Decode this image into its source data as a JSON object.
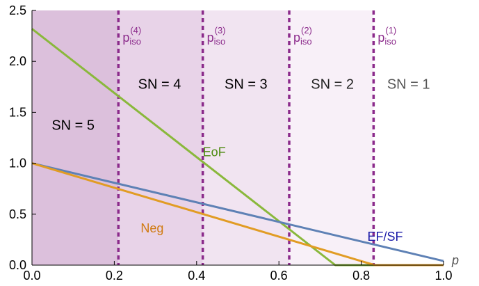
{
  "chart_data": {
    "type": "line",
    "title": "",
    "xlabel": "p",
    "ylabel": "",
    "xlim": [
      0,
      1
    ],
    "ylim": [
      0,
      2.5
    ],
    "grid": false,
    "x_ticks": [
      "0.0",
      "0.2",
      "0.4",
      "0.6",
      "0.8",
      "1.0"
    ],
    "y_ticks": [
      "0.0",
      "0.5",
      "1.0",
      "1.5",
      "2.0",
      "2.5"
    ],
    "x_tick_values": [
      0,
      0.2,
      0.4,
      0.6,
      0.8,
      1.0
    ],
    "y_tick_values": [
      0,
      0.5,
      1.0,
      1.5,
      2.0,
      2.5
    ],
    "series": [
      {
        "name": "EoF",
        "color": "#8ab83c",
        "label_at": [
          0.415,
          1.07
        ],
        "x": [
          0,
          0.737,
          1.0
        ],
        "y": [
          2.32,
          0,
          0
        ]
      },
      {
        "name": "EF/SF",
        "color": "#5e81b5",
        "label_at": [
          0.815,
          0.24
        ],
        "x": [
          0,
          1.0
        ],
        "y": [
          1.0,
          0.04
        ]
      },
      {
        "name": "Neg",
        "color": "#e19c24",
        "label_at": [
          0.32,
          0.32
        ],
        "x": [
          0,
          0.833,
          1.0
        ],
        "y": [
          1.0,
          0,
          0
        ]
      }
    ],
    "isolines": [
      {
        "p": 0.21,
        "label": "p",
        "sub": "iso",
        "sup": "(4)"
      },
      {
        "p": 0.415,
        "label": "p",
        "sub": "iso",
        "sup": "(3)"
      },
      {
        "p": 0.625,
        "label": "p",
        "sub": "iso",
        "sup": "(2)"
      },
      {
        "p": 0.83,
        "label": "p",
        "sub": "iso",
        "sup": "(1)"
      }
    ],
    "regions": [
      {
        "from": 0,
        "to": 0.21,
        "label": "SN = 5",
        "label_at": [
          0.1,
          1.33
        ],
        "fill": "#dcc0dc",
        "text_color": "#000000"
      },
      {
        "from": 0.21,
        "to": 0.415,
        "label": "SN = 4",
        "label_at": [
          0.31,
          1.73
        ],
        "fill": "#e8d3e8",
        "text_color": "#000000"
      },
      {
        "from": 0.415,
        "to": 0.625,
        "label": "SN = 3",
        "label_at": [
          0.52,
          1.73
        ],
        "fill": "#f1e4f1",
        "text_color": "#000000"
      },
      {
        "from": 0.625,
        "to": 0.83,
        "label": "SN = 2",
        "label_at": [
          0.73,
          1.73
        ],
        "fill": "#f8f0f8",
        "text_color": "#222222"
      },
      {
        "from": 0.83,
        "to": 1.0,
        "label": "SN = 1",
        "label_at": [
          0.915,
          1.73
        ],
        "fill": "#ffffff",
        "text_color": "#555555"
      }
    ],
    "iso_color": "#8b2a8b"
  }
}
